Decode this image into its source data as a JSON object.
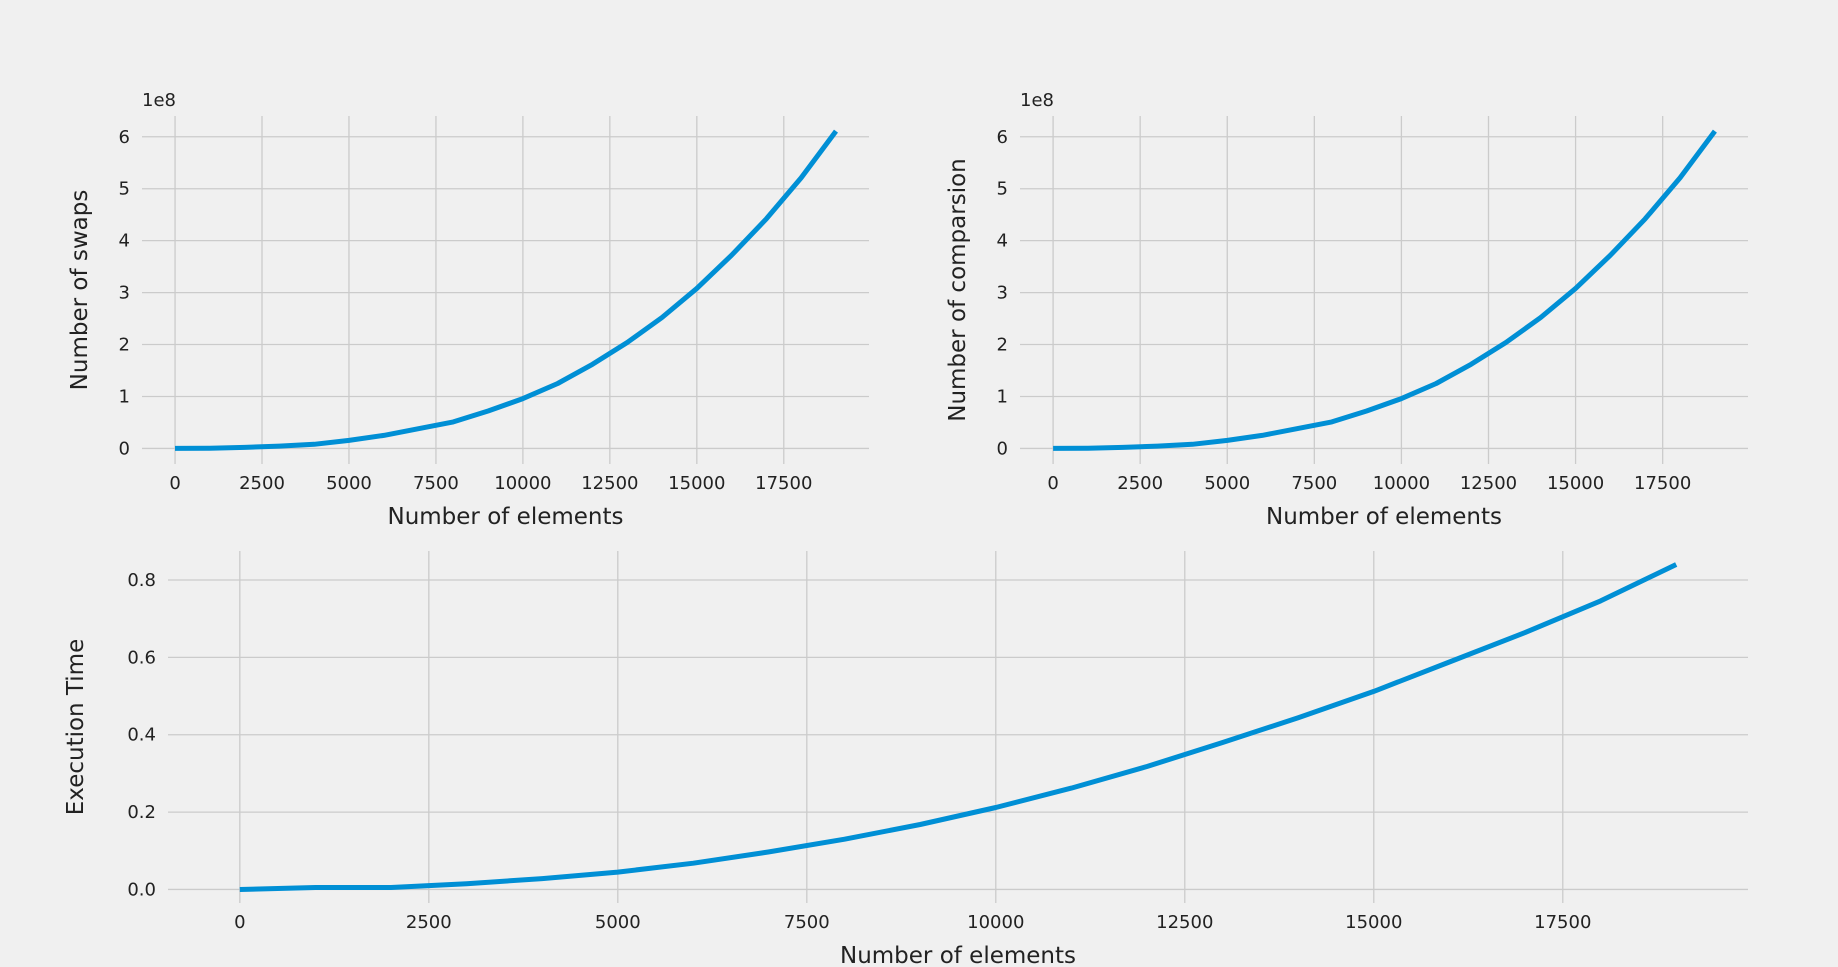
{
  "chart_data": [
    {
      "type": "line",
      "xlabel": "Number of elements",
      "ylabel": "Number of swaps",
      "offset_text": "1e8",
      "x_ticks": [
        0,
        2500,
        5000,
        7500,
        10000,
        12500,
        15000,
        17500
      ],
      "x_tick_labels": [
        "0",
        "2500",
        "5000",
        "7500",
        "10000",
        "12500",
        "15000",
        "17500"
      ],
      "y_ticks": [
        0,
        1,
        2,
        3,
        4,
        5,
        6
      ],
      "y_tick_labels": [
        "0",
        "1",
        "2",
        "3",
        "4",
        "5",
        "6"
      ],
      "xlim": [
        -950,
        19950
      ],
      "ylim": [
        -0.3,
        6.4
      ],
      "grid": true,
      "x": [
        0,
        1000,
        2000,
        3000,
        4000,
        5000,
        6000,
        7000,
        8000,
        9000,
        10000,
        11000,
        12000,
        13000,
        14000,
        15000,
        16000,
        17000,
        18000,
        19000
      ],
      "y": [
        0,
        0.005,
        0.02,
        0.045,
        0.08,
        0.155,
        0.25,
        0.38,
        0.51,
        0.72,
        0.96,
        1.25,
        1.62,
        2.04,
        2.52,
        3.08,
        3.72,
        4.42,
        5.21,
        6.11
      ]
    },
    {
      "type": "line",
      "xlabel": "Number of elements",
      "ylabel": "Number of comparsion",
      "offset_text": "1e8",
      "x_ticks": [
        0,
        2500,
        5000,
        7500,
        10000,
        12500,
        15000,
        17500
      ],
      "x_tick_labels": [
        "0",
        "2500",
        "5000",
        "7500",
        "10000",
        "12500",
        "15000",
        "17500"
      ],
      "y_ticks": [
        0,
        1,
        2,
        3,
        4,
        5,
        6
      ],
      "y_tick_labels": [
        "0",
        "1",
        "2",
        "3",
        "4",
        "5",
        "6"
      ],
      "xlim": [
        -950,
        19950
      ],
      "ylim": [
        -0.3,
        6.4
      ],
      "grid": true,
      "x": [
        0,
        1000,
        2000,
        3000,
        4000,
        5000,
        6000,
        7000,
        8000,
        9000,
        10000,
        11000,
        12000,
        13000,
        14000,
        15000,
        16000,
        17000,
        18000,
        19000
      ],
      "y": [
        0,
        0.005,
        0.02,
        0.045,
        0.08,
        0.155,
        0.25,
        0.38,
        0.51,
        0.72,
        0.96,
        1.25,
        1.62,
        2.04,
        2.52,
        3.08,
        3.72,
        4.42,
        5.21,
        6.11
      ]
    },
    {
      "type": "line",
      "xlabel": "Number of elements",
      "ylabel": "Execution Time",
      "offset_text": "",
      "x_ticks": [
        0,
        2500,
        5000,
        7500,
        10000,
        12500,
        15000,
        17500
      ],
      "x_tick_labels": [
        "0",
        "2500",
        "5000",
        "7500",
        "10000",
        "12500",
        "15000",
        "17500"
      ],
      "y_ticks": [
        0.0,
        0.2,
        0.4,
        0.6,
        0.8
      ],
      "y_tick_labels": [
        "0.0",
        "0.2",
        "0.4",
        "0.6",
        "0.8"
      ],
      "xlim": [
        -950,
        19950
      ],
      "ylim": [
        -0.035,
        0.875
      ],
      "grid": true,
      "x": [
        0,
        1000,
        2000,
        3000,
        4000,
        5000,
        6000,
        7000,
        8000,
        9000,
        10000,
        11000,
        12000,
        13000,
        14000,
        15000,
        16000,
        17000,
        18000,
        19000
      ],
      "y": [
        0.0,
        0.005,
        0.005,
        0.015,
        0.028,
        0.045,
        0.068,
        0.097,
        0.13,
        0.168,
        0.212,
        0.262,
        0.318,
        0.38,
        0.444,
        0.512,
        0.588,
        0.664,
        0.746,
        0.84
      ]
    }
  ]
}
